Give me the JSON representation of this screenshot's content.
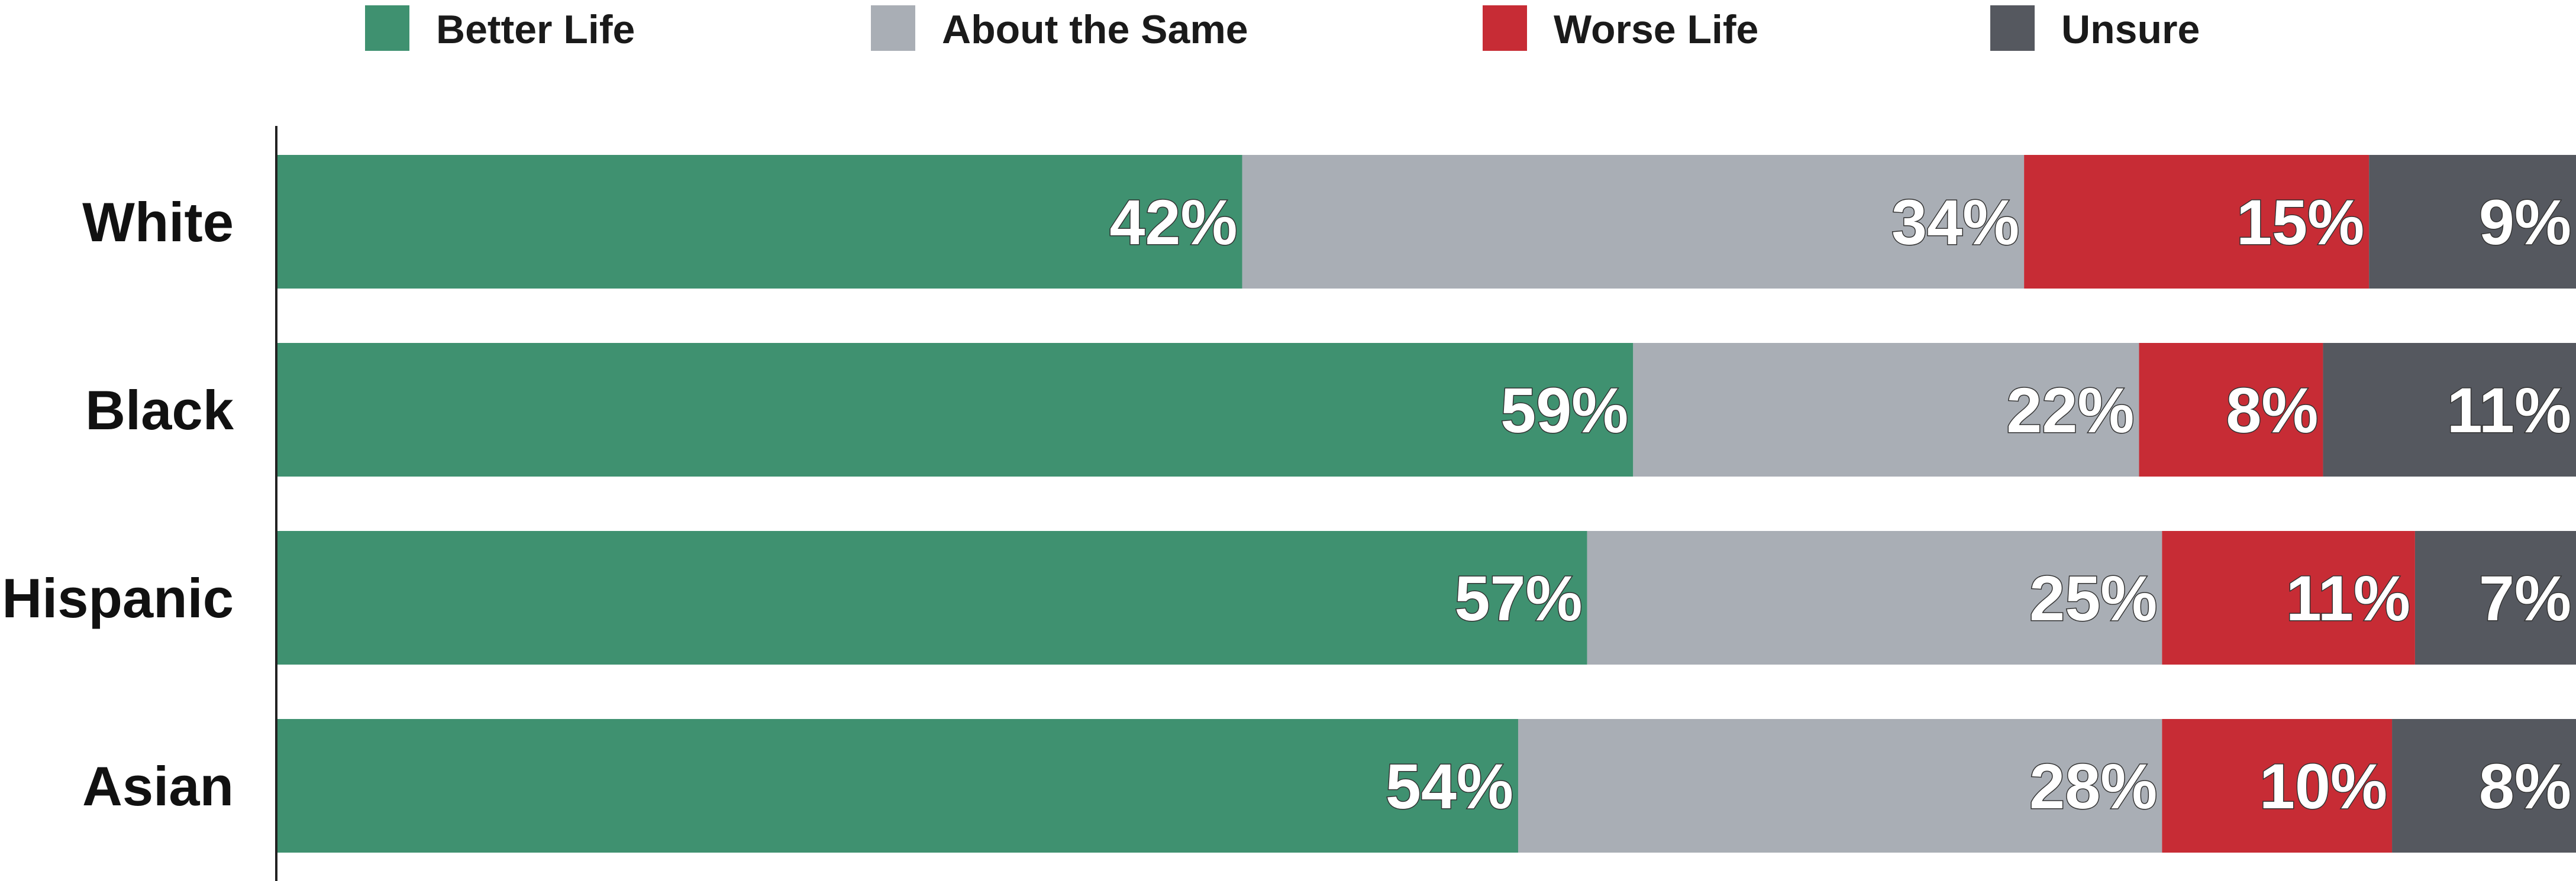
{
  "chart_data": {
    "type": "bar",
    "orientation": "horizontal",
    "stacked": true,
    "title": "",
    "xlabel": "",
    "ylabel": "",
    "xlim": [
      0,
      100
    ],
    "grid": false,
    "legend_position": "top",
    "value_suffix": "%",
    "categories": [
      "White",
      "Black",
      "Hispanic",
      "Asian"
    ],
    "series": [
      {
        "name": "Better Life",
        "color": "#3f9170",
        "values": [
          42,
          59,
          57,
          54
        ]
      },
      {
        "name": "About the Same",
        "color": "#a9aeb5",
        "values": [
          34,
          22,
          25,
          28
        ]
      },
      {
        "name": "Worse Life",
        "color": "#c72c35",
        "values": [
          15,
          8,
          11,
          10
        ]
      },
      {
        "name": "Unsure",
        "color": "#55585f",
        "values": [
          9,
          11,
          7,
          8
        ]
      }
    ]
  }
}
